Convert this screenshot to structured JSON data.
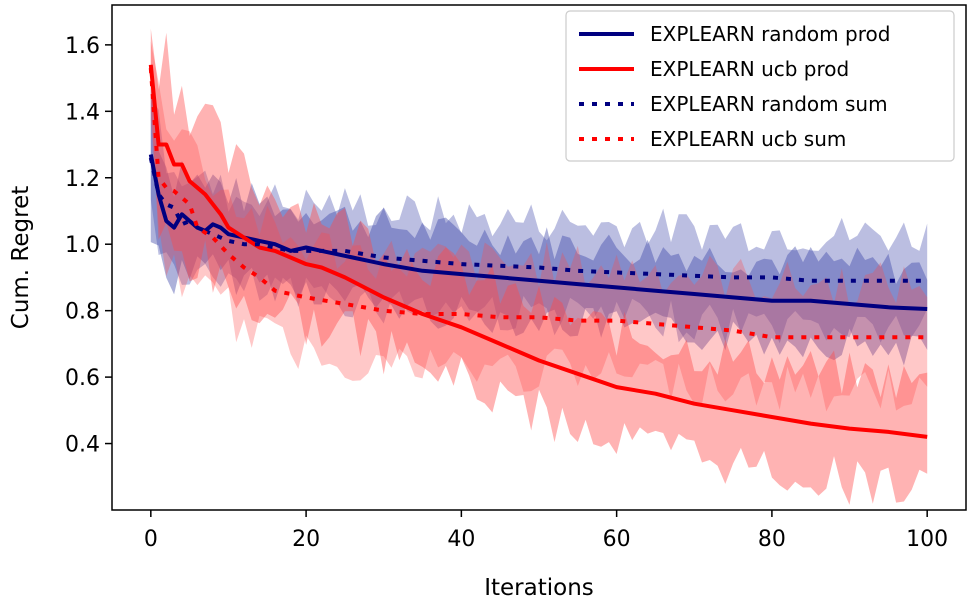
{
  "chart_data": {
    "type": "line",
    "title": "",
    "xlabel": "Iterations",
    "ylabel": "Cum. Regret",
    "xlim": [
      -5,
      105
    ],
    "ylim": [
      0.2,
      1.72
    ],
    "xticks": [
      0,
      20,
      40,
      60,
      80,
      100
    ],
    "yticks": [
      0.4,
      0.6,
      0.8,
      1.0,
      1.2,
      1.4,
      1.6
    ],
    "xtick_labels": [
      "0",
      "20",
      "40",
      "60",
      "80",
      "100"
    ],
    "ytick_labels": [
      "0.4",
      "0.6",
      "0.8",
      "1.0",
      "1.2",
      "1.4",
      "1.6"
    ],
    "grid": false,
    "legend_position": "top-right",
    "series": [
      {
        "name": "EXPLEARN random prod",
        "color": "#000080",
        "style": "solid",
        "x": [
          0,
          1,
          2,
          3,
          4,
          5,
          6,
          7,
          8,
          9,
          10,
          12,
          14,
          16,
          18,
          20,
          22,
          24,
          26,
          28,
          30,
          35,
          40,
          45,
          50,
          55,
          60,
          65,
          70,
          75,
          80,
          85,
          90,
          95,
          100
        ],
        "y": [
          1.27,
          1.15,
          1.07,
          1.05,
          1.09,
          1.07,
          1.05,
          1.04,
          1.06,
          1.05,
          1.03,
          1.02,
          1.01,
          1.0,
          0.98,
          0.99,
          0.98,
          0.97,
          0.96,
          0.95,
          0.94,
          0.92,
          0.91,
          0.9,
          0.89,
          0.88,
          0.87,
          0.86,
          0.85,
          0.84,
          0.83,
          0.83,
          0.82,
          0.81,
          0.805
        ],
        "band_width": [
          0.25,
          0.2,
          0.17,
          0.15,
          0.15,
          0.14,
          0.14,
          0.13,
          0.13,
          0.13,
          0.13,
          0.12,
          0.12,
          0.12,
          0.12,
          0.12,
          0.12,
          0.12,
          0.12,
          0.12,
          0.12,
          0.12,
          0.12,
          0.12,
          0.12,
          0.12,
          0.12,
          0.12,
          0.12,
          0.12,
          0.12,
          0.12,
          0.12,
          0.12,
          0.12
        ]
      },
      {
        "name": "EXPLEARN ucb prod",
        "color": "#ff0000",
        "style": "solid",
        "x": [
          0,
          1,
          2,
          3,
          4,
          5,
          6,
          7,
          8,
          9,
          10,
          12,
          14,
          16,
          18,
          20,
          22,
          25,
          30,
          35,
          40,
          45,
          50,
          55,
          60,
          65,
          70,
          75,
          80,
          85,
          90,
          95,
          100
        ],
        "y": [
          1.54,
          1.3,
          1.3,
          1.24,
          1.24,
          1.19,
          1.17,
          1.15,
          1.12,
          1.09,
          1.05,
          1.02,
          0.99,
          0.98,
          0.96,
          0.94,
          0.93,
          0.9,
          0.84,
          0.79,
          0.75,
          0.7,
          0.65,
          0.61,
          0.57,
          0.55,
          0.52,
          0.5,
          0.48,
          0.46,
          0.445,
          0.435,
          0.42
        ],
        "band_width": [
          0.12,
          0.3,
          0.28,
          0.26,
          0.25,
          0.24,
          0.23,
          0.22,
          0.21,
          0.2,
          0.2,
          0.19,
          0.18,
          0.18,
          0.17,
          0.17,
          0.17,
          0.16,
          0.16,
          0.16,
          0.16,
          0.16,
          0.16,
          0.16,
          0.16,
          0.16,
          0.16,
          0.16,
          0.16,
          0.16,
          0.16,
          0.16,
          0.16
        ]
      },
      {
        "name": "EXPLEARN random sum",
        "color": "#000080",
        "style": "dotted",
        "x": [
          0,
          1,
          2,
          3,
          4,
          5,
          6,
          8,
          10,
          12,
          14,
          16,
          18,
          20,
          25,
          30,
          35,
          40,
          45,
          50,
          55,
          60,
          65,
          70,
          75,
          80,
          85,
          90,
          95,
          100
        ],
        "y": [
          1.26,
          1.15,
          1.12,
          1.11,
          1.06,
          1.07,
          1.05,
          1.03,
          1.01,
          1.0,
          1.0,
          0.99,
          0.98,
          0.98,
          0.98,
          0.96,
          0.95,
          0.94,
          0.935,
          0.93,
          0.92,
          0.915,
          0.91,
          0.905,
          0.9,
          0.9,
          0.89,
          0.89,
          0.89,
          0.89
        ],
        "band_width": [
          0.22,
          0.18,
          0.16,
          0.15,
          0.15,
          0.14,
          0.14,
          0.14,
          0.14,
          0.14,
          0.14,
          0.14,
          0.14,
          0.14,
          0.14,
          0.14,
          0.14,
          0.14,
          0.14,
          0.14,
          0.14,
          0.14,
          0.14,
          0.14,
          0.14,
          0.14,
          0.14,
          0.14,
          0.14,
          0.14
        ]
      },
      {
        "name": "EXPLEARN ucb sum",
        "color": "#ff0000",
        "style": "dotted",
        "x": [
          0,
          1,
          2,
          3,
          4,
          5,
          6,
          8,
          10,
          12,
          14,
          16,
          18,
          20,
          25,
          30,
          35,
          40,
          45,
          50,
          55,
          60,
          65,
          70,
          75,
          80,
          85,
          90,
          95,
          100
        ],
        "y": [
          1.53,
          1.2,
          1.17,
          1.16,
          1.14,
          1.12,
          1.05,
          1.02,
          0.97,
          0.93,
          0.9,
          0.86,
          0.85,
          0.84,
          0.82,
          0.8,
          0.79,
          0.79,
          0.78,
          0.78,
          0.77,
          0.77,
          0.76,
          0.75,
          0.74,
          0.72,
          0.72,
          0.72,
          0.72,
          0.72
        ],
        "band_width": [
          0.12,
          0.25,
          0.24,
          0.23,
          0.22,
          0.21,
          0.2,
          0.19,
          0.18,
          0.17,
          0.17,
          0.16,
          0.16,
          0.16,
          0.16,
          0.16,
          0.16,
          0.16,
          0.16,
          0.16,
          0.16,
          0.16,
          0.16,
          0.16,
          0.16,
          0.16,
          0.16,
          0.16,
          0.16,
          0.16
        ]
      }
    ]
  }
}
